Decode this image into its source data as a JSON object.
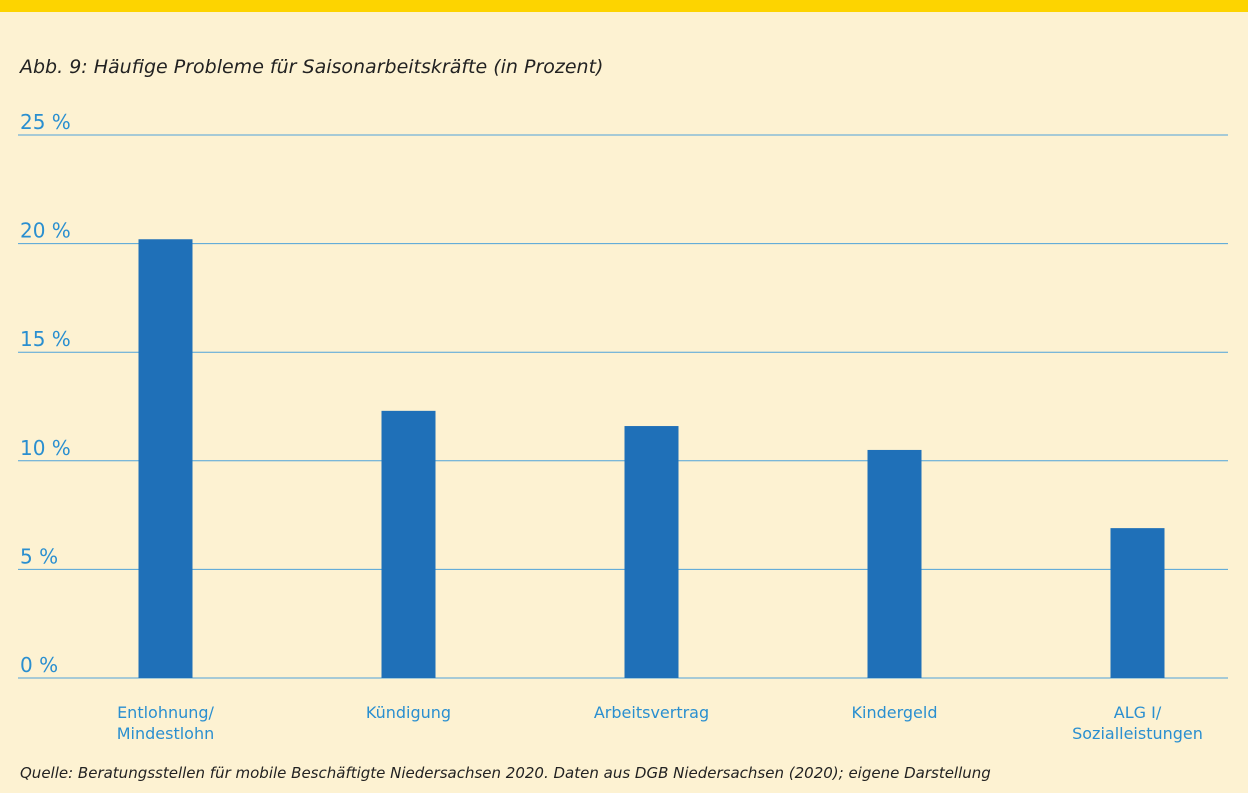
{
  "chart_data": {
    "type": "bar",
    "title": "Abb. 9: Häufige Probleme für Saisonarbeitskräfte (in Prozent)",
    "categories": [
      "Entlohnung/\nMindestlohn",
      "Kündigung",
      "Arbeitsvertrag",
      "Kindergeld",
      "ALG I/\nSozialleistungen"
    ],
    "values": [
      20.2,
      12.3,
      11.6,
      10.5,
      6.9
    ],
    "color": "#1f70b8",
    "ylim": [
      0,
      25
    ],
    "yticks": [
      {
        "value": 0,
        "label": "0 %"
      },
      {
        "value": 5,
        "label": "5 %"
      },
      {
        "value": 10,
        "label": "10 %"
      },
      {
        "value": 15,
        "label": "15 %"
      },
      {
        "value": 20,
        "label": "20 %"
      },
      {
        "value": 25,
        "label": "25 %"
      }
    ],
    "grid": true,
    "source": "Quelle: Beratungsstellen für mobile Beschäftigte Niedersachsen 2020. Daten aus DGB Niedersachsen (2020); eigene Darstellung"
  }
}
